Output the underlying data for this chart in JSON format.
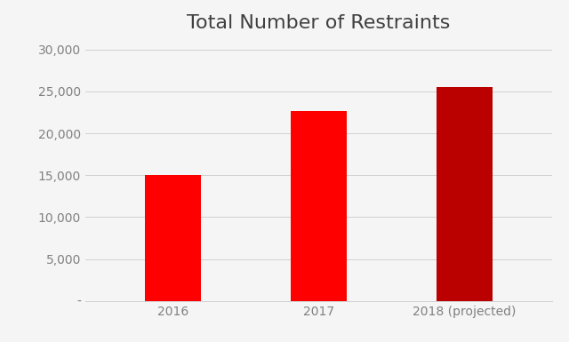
{
  "title": "Total Number of Restraints",
  "categories": [
    "2016",
    "2017",
    "2018 (projected)"
  ],
  "values": [
    15000,
    22620,
    25500
  ],
  "bar_colors": [
    "#ff0000",
    "#ff0000",
    "#bb0000"
  ],
  "ylim": [
    0,
    31000
  ],
  "yticks": [
    0,
    5000,
    10000,
    15000,
    20000,
    25000,
    30000
  ],
  "ytick_labels": [
    "-",
    "5,000",
    "10,000",
    "15,000",
    "20,000",
    "25,000",
    "30,000"
  ],
  "background_color": "#f5f5f5",
  "plot_bg_color": "#f5f5f5",
  "grid_color": "#d0d0d0",
  "title_fontsize": 16,
  "tick_fontsize": 10,
  "bar_width": 0.38,
  "title_color": "#404040",
  "tick_color": "#808080"
}
